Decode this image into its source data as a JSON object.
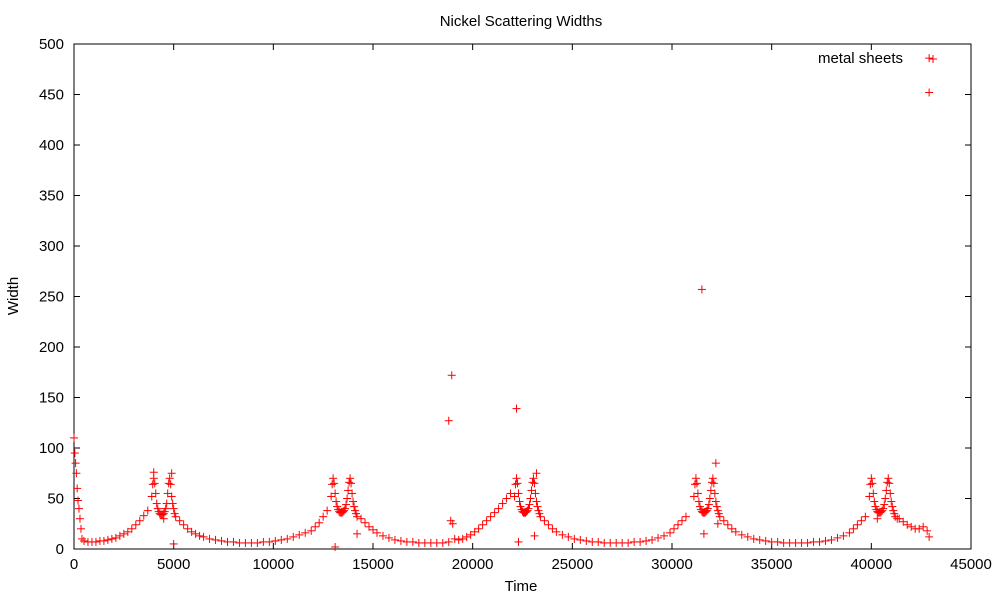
{
  "chart_data": {
    "type": "scatter",
    "title": "Nickel Scattering Widths",
    "xlabel": "Time",
    "ylabel": "Width",
    "xlim": [
      0,
      45000
    ],
    "ylim": [
      0,
      500
    ],
    "xticks": [
      0,
      5000,
      10000,
      15000,
      20000,
      25000,
      30000,
      35000,
      40000,
      45000
    ],
    "yticks": [
      0,
      50,
      100,
      150,
      200,
      250,
      300,
      350,
      400,
      450,
      500
    ],
    "grid": false,
    "legend_position": "top-right",
    "marker": "plus",
    "series": [
      {
        "name": "metal sheets",
        "color": "#ff0000",
        "x": [
          0,
          40,
          80,
          120,
          160,
          200,
          250,
          300,
          350,
          400,
          500,
          700,
          900,
          1100,
          1300,
          1500,
          1700,
          1900,
          2100,
          2300,
          2500,
          2700,
          2900,
          3100,
          3300,
          3500,
          3700,
          3900,
          3950,
          4000,
          4050,
          4100,
          4150,
          4200,
          4250,
          4300,
          4350,
          4400,
          4450,
          4500,
          4550,
          4600,
          4650,
          4700,
          4750,
          4800,
          4850,
          4900,
          4950,
          5000,
          5050,
          5100,
          4000,
          4900,
          5000,
          4500,
          5300,
          5500,
          5700,
          5900,
          6100,
          6300,
          6500,
          6800,
          7100,
          7400,
          7700,
          8000,
          8300,
          8600,
          8900,
          9200,
          9500,
          9800,
          10100,
          10400,
          10700,
          11000,
          11300,
          11600,
          11900,
          12100,
          12300,
          12500,
          12700,
          12900,
          12950,
          13000,
          13050,
          13100,
          13150,
          13200,
          13250,
          13300,
          13350,
          13400,
          13450,
          13500,
          13550,
          13600,
          13650,
          13700,
          13750,
          13800,
          13850,
          13900,
          13950,
          14000,
          14050,
          14100,
          14150,
          14200,
          13100,
          14200,
          14400,
          14600,
          14800,
          15000,
          15200,
          15500,
          15800,
          16100,
          16400,
          16700,
          17000,
          17300,
          17600,
          17900,
          18200,
          18500,
          18800,
          18800,
          18950,
          18900,
          19000,
          19100,
          19300,
          19500,
          19700,
          19900,
          20100,
          20300,
          20500,
          20700,
          20900,
          21100,
          21300,
          21500,
          21700,
          21900,
          22100,
          22150,
          22200,
          22250,
          22300,
          22350,
          22400,
          22450,
          22500,
          22550,
          22600,
          22650,
          22700,
          22750,
          22800,
          22850,
          22900,
          22950,
          23000,
          23050,
          23100,
          23150,
          23200,
          23250,
          23300,
          23350,
          23400,
          22200,
          22300,
          23100,
          23200,
          23600,
          23800,
          24000,
          24200,
          24500,
          24800,
          25100,
          25400,
          25700,
          26000,
          26300,
          26600,
          26900,
          27200,
          27500,
          27800,
          28100,
          28400,
          28700,
          29000,
          29300,
          29600,
          29900,
          30100,
          30300,
          30500,
          30700,
          31100,
          31150,
          31200,
          31250,
          31300,
          31350,
          31400,
          31450,
          31500,
          31550,
          31600,
          31650,
          31700,
          31750,
          31800,
          31850,
          31900,
          31950,
          32000,
          32050,
          32100,
          32150,
          32200,
          32250,
          32300,
          32350,
          32400,
          31500,
          31600,
          32200,
          32300,
          32600,
          32800,
          33000,
          33200,
          33500,
          33800,
          34100,
          34400,
          34700,
          35000,
          35300,
          35600,
          35900,
          36200,
          36500,
          36800,
          37100,
          37400,
          37700,
          38000,
          38300,
          38600,
          38900,
          39100,
          39300,
          39500,
          39700,
          39900,
          39950,
          40000,
          40050,
          40100,
          40150,
          40200,
          40250,
          40300,
          40350,
          40400,
          40450,
          40500,
          40550,
          40600,
          40650,
          40700,
          40750,
          40800,
          40850,
          40900,
          40950,
          41000,
          41050,
          41100,
          41150,
          41200,
          40300,
          41300,
          41400,
          41600,
          41800,
          42000,
          42200,
          42400,
          42600,
          42800,
          42900,
          42900,
          42900
        ],
        "y": [
          110,
          95,
          85,
          75,
          60,
          48,
          40,
          30,
          20,
          10,
          8,
          7,
          7,
          7,
          8,
          8,
          9,
          10,
          11,
          13,
          15,
          17,
          20,
          24,
          28,
          33,
          38,
          52,
          64,
          70,
          65,
          55,
          45,
          40,
          37,
          35,
          34,
          34,
          34,
          35,
          37,
          40,
          45,
          55,
          65,
          70,
          64,
          52,
          45,
          40,
          35,
          32,
          76,
          75,
          5,
          30,
          28,
          24,
          20,
          17,
          15,
          13,
          12,
          10,
          9,
          8,
          7,
          7,
          6,
          6,
          6,
          6,
          7,
          7,
          8,
          9,
          10,
          12,
          14,
          16,
          18,
          22,
          26,
          32,
          38,
          52,
          64,
          70,
          65,
          55,
          47,
          42,
          39,
          37,
          36,
          36,
          36,
          37,
          38,
          40,
          44,
          50,
          58,
          66,
          70,
          65,
          55,
          47,
          42,
          38,
          35,
          32,
          2,
          15,
          30,
          26,
          22,
          19,
          16,
          13,
          11,
          9,
          8,
          7,
          7,
          6,
          6,
          6,
          6,
          6,
          7,
          127,
          172,
          28,
          25,
          10,
          9,
          10,
          12,
          14,
          17,
          20,
          24,
          28,
          32,
          36,
          40,
          45,
          50,
          55,
          52,
          64,
          70,
          65,
          55,
          47,
          42,
          39,
          37,
          36,
          36,
          36,
          37,
          38,
          40,
          44,
          50,
          58,
          66,
          70,
          65,
          55,
          47,
          42,
          38,
          35,
          32,
          139,
          7,
          13,
          75,
          28,
          24,
          20,
          17,
          14,
          12,
          10,
          9,
          8,
          7,
          7,
          6,
          6,
          6,
          6,
          6,
          7,
          7,
          8,
          9,
          11,
          13,
          16,
          20,
          24,
          28,
          32,
          52,
          64,
          70,
          65,
          55,
          47,
          42,
          39,
          37,
          36,
          36,
          36,
          37,
          38,
          40,
          44,
          50,
          58,
          66,
          70,
          65,
          55,
          47,
          42,
          38,
          35,
          32,
          257,
          15,
          85,
          25,
          28,
          24,
          20,
          17,
          14,
          12,
          10,
          9,
          8,
          7,
          7,
          6,
          6,
          6,
          6,
          6,
          7,
          7,
          8,
          9,
          11,
          13,
          16,
          20,
          24,
          28,
          32,
          52,
          64,
          70,
          65,
          55,
          47,
          42,
          39,
          37,
          36,
          36,
          36,
          37,
          38,
          40,
          44,
          50,
          58,
          66,
          70,
          65,
          55,
          47,
          42,
          38,
          35,
          32,
          30,
          30,
          30,
          27,
          24,
          22,
          20,
          20,
          22,
          18,
          12,
          486,
          452
        ]
      }
    ]
  }
}
